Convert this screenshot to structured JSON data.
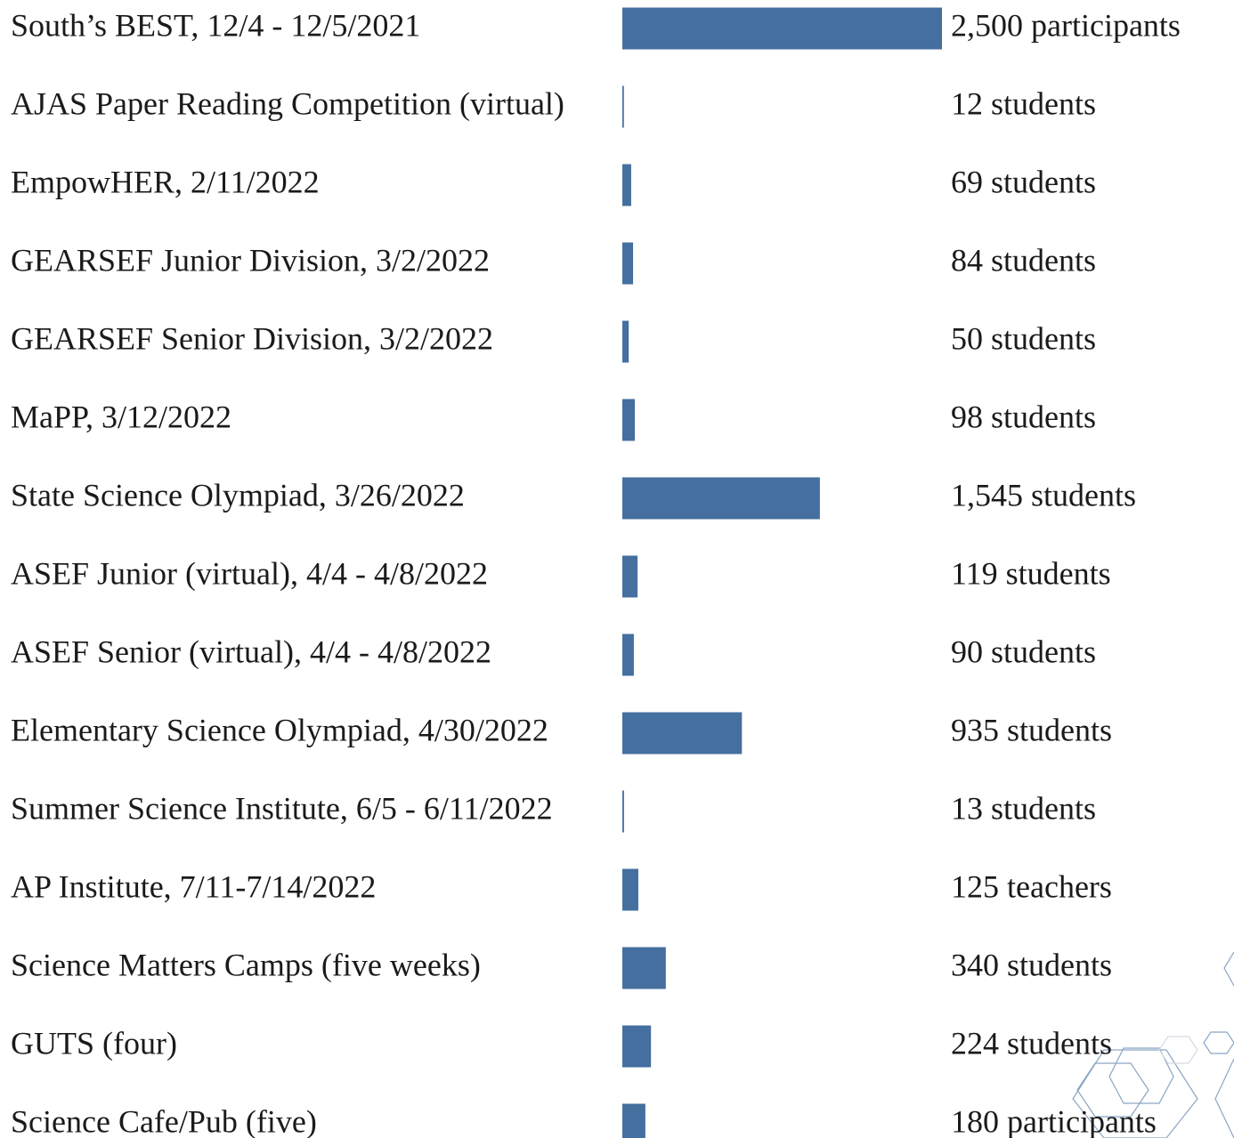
{
  "chart_data": {
    "type": "bar",
    "orientation": "horizontal",
    "color": "#446f9f",
    "categories": [
      "South’s BEST, 12/4 - 12/5/2021",
      "AJAS Paper Reading Competition (virtual)",
      "EmpowHER, 2/11/2022",
      "GEARSEF Junior Division, 3/2/2022",
      "GEARSEF Senior Division, 3/2/2022",
      "MaPP, 3/12/2022",
      "State Science Olympiad, 3/26/2022",
      "ASEF Junior (virtual), 4/4 - 4/8/2022",
      "ASEF Senior (virtual), 4/4 - 4/8/2022",
      "Elementary Science Olympiad, 4/30/2022",
      "Summer Science Institute, 6/5 - 6/11/2022",
      "AP Institute, 7/11-7/14/2022",
      "Science Matters Camps (five weeks)",
      "GUTS (four)",
      "Science Cafe/Pub (five)"
    ],
    "values": [
      2500,
      12,
      69,
      84,
      50,
      98,
      1545,
      119,
      90,
      935,
      13,
      125,
      340,
      224,
      180
    ],
    "value_labels": [
      "2,500 participants",
      "12 students",
      "69 students",
      "84 students",
      "50 students",
      "98 students",
      "1,545 students",
      "119 students",
      "90 students",
      "935 students",
      "13 students",
      "125 teachers",
      "340 students",
      "224 students",
      "180 participants"
    ]
  }
}
